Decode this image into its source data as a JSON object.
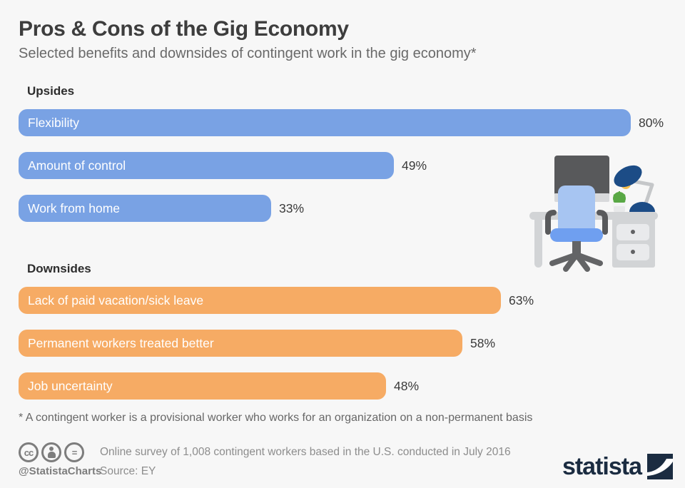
{
  "header": {
    "title": "Pros & Cons of the Gig Economy",
    "subtitle": "Selected benefits and downsides of contingent work in the gig economy*"
  },
  "chart_data": {
    "type": "bar",
    "orientation": "horizontal",
    "unit": "%",
    "xlim": [
      0,
      100
    ],
    "grid": false,
    "legend_position": "none",
    "title": "Pros & Cons of the Gig Economy",
    "subtitle": "Selected benefits and downsides of contingent work in the gig economy*",
    "groups": [
      {
        "name": "Upsides",
        "color": "#79a2e4",
        "items": [
          {
            "label": "Flexibility",
            "value": 80,
            "value_label": "80%"
          },
          {
            "label": "Amount of control",
            "value": 49,
            "value_label": "49%"
          },
          {
            "label": "Work from home",
            "value": 33,
            "value_label": "33%"
          }
        ]
      },
      {
        "name": "Downsides",
        "color": "#f6ab64",
        "items": [
          {
            "label": "Lack of paid vacation/sick leave",
            "value": 63,
            "value_label": "63%"
          },
          {
            "label": "Permanent workers treated better",
            "value": 58,
            "value_label": "58%"
          },
          {
            "label": "Job uncertainty",
            "value": 48,
            "value_label": "48%"
          }
        ]
      }
    ]
  },
  "footnote": "* A contingent worker is a provisional worker who works for an organization on a non-permanent basis",
  "footer": {
    "handle": "@StatistaCharts",
    "survey_note": "Online survey of 1,008 contingent workers based in the U.S. conducted in July 2016",
    "source": "Source: EY",
    "brand": "statista",
    "cc_icons": [
      {
        "name": "cc-icon",
        "glyph": "cc"
      },
      {
        "name": "attribution-icon",
        "glyph": ""
      },
      {
        "name": "no-derivatives-icon",
        "glyph": "="
      }
    ]
  },
  "colors": {
    "background": "#f7f7f7",
    "upside_bar": "#79a2e4",
    "downside_bar": "#f6ab64",
    "brand_navy": "#1b2c41"
  },
  "illustration": "desk-workspace"
}
